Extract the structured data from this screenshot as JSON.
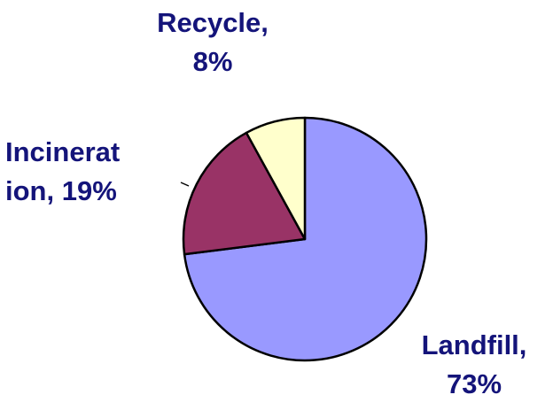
{
  "chart_data": {
    "type": "pie",
    "labels": [
      "Recycle,\n8%",
      "Incinerat\nion, 19%",
      "Landfill,\n73%"
    ],
    "values": [
      8,
      19,
      73
    ],
    "colors": [
      "#ffffcc",
      "#993366",
      "#9999ff"
    ]
  }
}
